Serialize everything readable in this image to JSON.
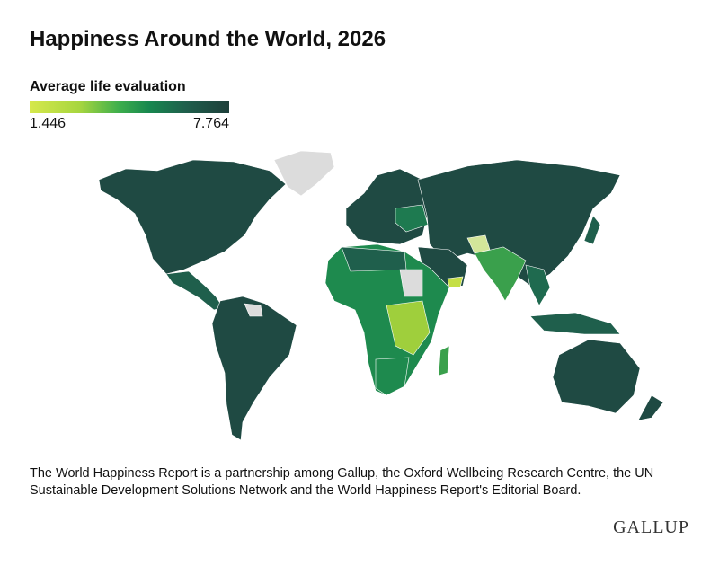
{
  "header": {
    "title": "Happiness Around the World, 2026"
  },
  "legend": {
    "label": "Average life evaluation",
    "min": 1.446,
    "max": 7.764
  },
  "footer": {
    "note": "The World Happiness Report is a partnership among Gallup, the Oxford Wellbeing Research Centre, the UN Sustainable Development Solutions Network and the World Happiness Report's Editorial Board.",
    "logo": "GALLUP"
  }
}
